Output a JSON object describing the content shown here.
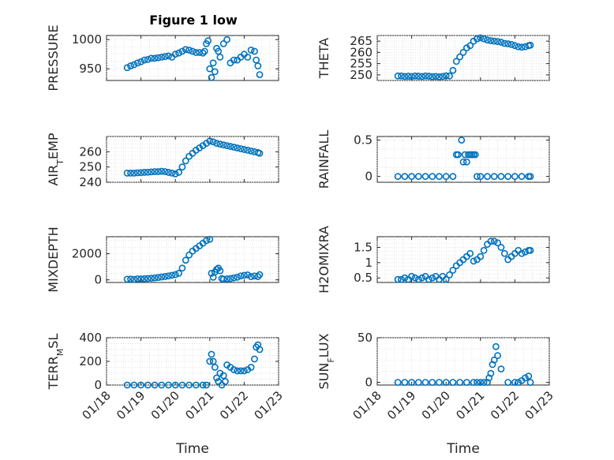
{
  "figure_title": "Figure 1 low",
  "marker_color": "#0072BD",
  "chart_data": [
    {
      "type": "scatter",
      "ylabel": "PRESSURE",
      "xlabel": "",
      "title": "Figure 1 low",
      "xlim": [
        18,
        23
      ],
      "ylim": [
        930,
        1007
      ],
      "yticks": [
        950,
        1000
      ],
      "ytick_labels": [
        "950",
        "1000"
      ],
      "xticks": [
        18,
        19,
        20,
        21,
        22,
        23
      ],
      "xtick_labels": [],
      "grid": true,
      "x": [
        18.6,
        18.7,
        18.8,
        18.9,
        19.0,
        19.1,
        19.2,
        19.3,
        19.4,
        19.5,
        19.6,
        19.7,
        19.8,
        19.9,
        20.0,
        20.1,
        20.2,
        20.3,
        20.4,
        20.5,
        20.6,
        20.7,
        20.8,
        20.85,
        20.9,
        20.95,
        21.0,
        21.05,
        21.1,
        21.15,
        21.2,
        21.25,
        21.3,
        21.4,
        21.5,
        21.6,
        21.7,
        21.8,
        21.9,
        22.0,
        22.1,
        22.2,
        22.3,
        22.35,
        22.4,
        22.45
      ],
      "y": [
        952,
        955,
        957,
        960,
        962,
        965,
        966,
        968,
        968,
        969,
        970,
        971,
        972,
        970,
        975,
        977,
        980,
        983,
        982,
        980,
        978,
        978,
        977,
        980,
        993,
        998,
        950,
        935,
        960,
        945,
        985,
        980,
        970,
        993,
        1000,
        960,
        965,
        965,
        970,
        975,
        970,
        982,
        980,
        965,
        955,
        940
      ]
    },
    {
      "type": "scatter",
      "ylabel": "THETA",
      "xlabel": "",
      "xlim": [
        18,
        23
      ],
      "ylim": [
        247.5,
        267.5
      ],
      "yticks": [
        250,
        255,
        260,
        265
      ],
      "ytick_labels": [
        "250",
        "255",
        "260",
        "265"
      ],
      "xticks": [
        18,
        19,
        20,
        21,
        22,
        23
      ],
      "xtick_labels": [],
      "grid": true,
      "x": [
        18.6,
        18.7,
        18.8,
        18.9,
        19.0,
        19.1,
        19.2,
        19.3,
        19.4,
        19.5,
        19.6,
        19.7,
        19.8,
        19.9,
        20.0,
        20.1,
        20.2,
        20.3,
        20.4,
        20.5,
        20.6,
        20.7,
        20.8,
        20.9,
        21.0,
        21.1,
        21.2,
        21.3,
        21.4,
        21.5,
        21.6,
        21.7,
        21.8,
        21.9,
        22.0,
        22.1,
        22.2,
        22.3,
        22.4,
        22.45
      ],
      "y": [
        249.5,
        249.5,
        249.3,
        249.4,
        249.3,
        249.5,
        249.4,
        249.3,
        249.5,
        249.4,
        249.2,
        249.3,
        249.1,
        249.3,
        249.6,
        249.5,
        252,
        256,
        258,
        260,
        262,
        263,
        265,
        266,
        266.5,
        266,
        265.5,
        265.2,
        265,
        264.8,
        264.5,
        264,
        263.8,
        263.5,
        263,
        262.5,
        262.3,
        262.5,
        263,
        263.2
      ]
    },
    {
      "type": "scatter",
      "ylabel": "AIR_TEMP",
      "xlabel": "",
      "xlim": [
        18,
        23
      ],
      "ylim": [
        240,
        270
      ],
      "yticks": [
        240,
        250,
        260
      ],
      "ytick_labels": [
        "240",
        "250",
        "260"
      ],
      "xticks": [
        18,
        19,
        20,
        21,
        22,
        23
      ],
      "xtick_labels": [],
      "grid": true,
      "x": [
        18.6,
        18.7,
        18.8,
        18.9,
        19.0,
        19.1,
        19.2,
        19.3,
        19.4,
        19.5,
        19.6,
        19.7,
        19.8,
        19.9,
        20.0,
        20.1,
        20.2,
        20.3,
        20.4,
        20.5,
        20.6,
        20.7,
        20.8,
        20.9,
        21.0,
        21.1,
        21.2,
        21.3,
        21.4,
        21.5,
        21.6,
        21.7,
        21.8,
        21.9,
        22.0,
        22.1,
        22.2,
        22.3,
        22.4,
        22.45
      ],
      "y": [
        246,
        246,
        246,
        246.2,
        246.3,
        246.5,
        246.6,
        246.8,
        247,
        247,
        247.2,
        247,
        246.5,
        246,
        245.5,
        246.5,
        250,
        254,
        257,
        259,
        261,
        262.5,
        264,
        265.5,
        267,
        266.5,
        265.5,
        265,
        264.5,
        264,
        263.5,
        263,
        262.5,
        262,
        261.5,
        261,
        260.5,
        260,
        259.5,
        259
      ]
    },
    {
      "type": "scatter",
      "ylabel": "RAINFALL",
      "xlabel": "",
      "xlim": [
        18,
        23
      ],
      "ylim": [
        -0.08,
        0.55
      ],
      "yticks": [
        0,
        0.5
      ],
      "ytick_labels": [
        "0",
        "0.5"
      ],
      "xticks": [
        18,
        19,
        20,
        21,
        22,
        23
      ],
      "xtick_labels": [],
      "grid": true,
      "x": [
        18.6,
        18.8,
        19.0,
        19.2,
        19.4,
        19.6,
        19.8,
        20.0,
        20.2,
        20.3,
        20.35,
        20.45,
        20.5,
        20.55,
        20.6,
        20.65,
        20.7,
        20.75,
        20.8,
        20.85,
        20.9,
        21.0,
        21.2,
        21.4,
        21.6,
        21.8,
        22.0,
        22.2,
        22.4,
        22.45
      ],
      "y": [
        0,
        0,
        0,
        0,
        0,
        0,
        0,
        0,
        0,
        0.3,
        0.3,
        0.5,
        0.2,
        0.3,
        0.2,
        0.3,
        0.3,
        0.3,
        0.3,
        0.3,
        0,
        0,
        0,
        0,
        0,
        0,
        0,
        0,
        0,
        0
      ]
    },
    {
      "type": "scatter",
      "ylabel": "MIXDEPTH",
      "xlabel": "",
      "xlim": [
        18,
        23
      ],
      "ylim": [
        -200,
        3300
      ],
      "yticks": [
        0,
        2000
      ],
      "ytick_labels": [
        "0",
        "2000"
      ],
      "xticks": [
        18,
        19,
        20,
        21,
        22,
        23
      ],
      "xtick_labels": [],
      "grid": true,
      "x": [
        18.6,
        18.7,
        18.8,
        18.9,
        19.0,
        19.1,
        19.2,
        19.3,
        19.4,
        19.5,
        19.6,
        19.7,
        19.8,
        19.9,
        20.0,
        20.1,
        20.2,
        20.3,
        20.4,
        20.5,
        20.6,
        20.7,
        20.8,
        20.9,
        21.0,
        21.05,
        21.1,
        21.15,
        21.2,
        21.25,
        21.3,
        21.35,
        21.4,
        21.5,
        21.6,
        21.7,
        21.8,
        21.9,
        22.0,
        22.1,
        22.2,
        22.3,
        22.4,
        22.45
      ],
      "y": [
        50,
        60,
        40,
        80,
        70,
        90,
        100,
        120,
        150,
        180,
        220,
        260,
        300,
        350,
        400,
        500,
        900,
        1500,
        1900,
        2200,
        2400,
        2600,
        2800,
        3000,
        3100,
        500,
        200,
        600,
        800,
        900,
        700,
        100,
        50,
        80,
        100,
        150,
        200,
        300,
        350,
        380,
        250,
        300,
        250,
        400
      ]
    },
    {
      "type": "scatter",
      "ylabel": "H2OMIXRA",
      "xlabel": "",
      "xlim": [
        18,
        23
      ],
      "ylim": [
        0.35,
        1.85
      ],
      "yticks": [
        0.5,
        1,
        1.5
      ],
      "ytick_labels": [
        "0.5",
        "1",
        "1.5"
      ],
      "xticks": [
        18,
        19,
        20,
        21,
        22,
        23
      ],
      "xtick_labels": [],
      "grid": true,
      "x": [
        18.6,
        18.7,
        18.8,
        18.9,
        19.0,
        19.1,
        19.2,
        19.3,
        19.4,
        19.5,
        19.6,
        19.7,
        19.8,
        19.9,
        20.0,
        20.1,
        20.2,
        20.3,
        20.4,
        20.5,
        20.6,
        20.7,
        20.8,
        20.9,
        21.0,
        21.1,
        21.2,
        21.3,
        21.4,
        21.5,
        21.6,
        21.7,
        21.8,
        21.9,
        22.0,
        22.1,
        22.2,
        22.3,
        22.4,
        22.45
      ],
      "y": [
        0.45,
        0.45,
        0.5,
        0.45,
        0.55,
        0.5,
        0.45,
        0.5,
        0.55,
        0.45,
        0.5,
        0.55,
        0.45,
        0.55,
        0.45,
        0.6,
        0.75,
        0.9,
        1.0,
        1.1,
        1.2,
        1.3,
        1.05,
        1.1,
        1.2,
        1.4,
        1.6,
        1.7,
        1.7,
        1.65,
        1.5,
        1.3,
        1.1,
        1.2,
        1.3,
        1.4,
        1.3,
        1.35,
        1.4,
        1.4
      ]
    },
    {
      "type": "scatter",
      "ylabel": "TERR_MSL",
      "xlabel": "Time",
      "xlim": [
        18,
        23
      ],
      "ylim": [
        0,
        400
      ],
      "yticks": [
        0,
        200,
        400
      ],
      "ytick_labels": [
        "0",
        "200",
        "400"
      ],
      "xticks": [
        18,
        19,
        20,
        21,
        22,
        23
      ],
      "xtick_labels": [
        "01/18",
        "01/19",
        "01/20",
        "01/21",
        "01/22",
        "01/23"
      ],
      "grid": true,
      "x": [
        18.6,
        18.8,
        19.0,
        19.2,
        19.4,
        19.6,
        19.8,
        20.0,
        20.2,
        20.4,
        20.6,
        20.8,
        20.9,
        21.0,
        21.05,
        21.1,
        21.15,
        21.2,
        21.25,
        21.3,
        21.35,
        21.4,
        21.45,
        21.5,
        21.6,
        21.7,
        21.8,
        21.9,
        22.0,
        22.1,
        22.2,
        22.3,
        22.35,
        22.4,
        22.45
      ],
      "y": [
        0,
        0,
        0,
        0,
        0,
        0,
        0,
        0,
        0,
        0,
        0,
        0,
        0,
        200,
        260,
        200,
        150,
        60,
        30,
        100,
        0,
        80,
        30,
        170,
        150,
        130,
        120,
        120,
        120,
        130,
        150,
        220,
        320,
        340,
        300
      ]
    },
    {
      "type": "scatter",
      "ylabel": "SUN_FLUX",
      "xlabel": "Time",
      "xlim": [
        18,
        23
      ],
      "ylim": [
        -3,
        50
      ],
      "yticks": [
        0,
        50
      ],
      "ytick_labels": [
        "0",
        "50"
      ],
      "xticks": [
        18,
        19,
        20,
        21,
        22,
        23
      ],
      "xtick_labels": [
        "01/18",
        "01/19",
        "01/20",
        "01/21",
        "01/22",
        "01/23"
      ],
      "grid": true,
      "x": [
        18.6,
        18.8,
        19.0,
        19.2,
        19.4,
        19.6,
        19.8,
        20.0,
        20.2,
        20.4,
        20.6,
        20.8,
        20.9,
        21.0,
        21.1,
        21.2,
        21.25,
        21.3,
        21.35,
        21.4,
        21.45,
        21.5,
        21.6,
        21.8,
        22.0,
        22.1,
        22.2,
        22.3,
        22.4,
        22.45
      ],
      "y": [
        0,
        0,
        0,
        0,
        0,
        0,
        0,
        0,
        0,
        0,
        0,
        0,
        0,
        0,
        0,
        0,
        5,
        10,
        20,
        25,
        40,
        30,
        15,
        0,
        0,
        0,
        2,
        5,
        7,
        0
      ]
    }
  ]
}
